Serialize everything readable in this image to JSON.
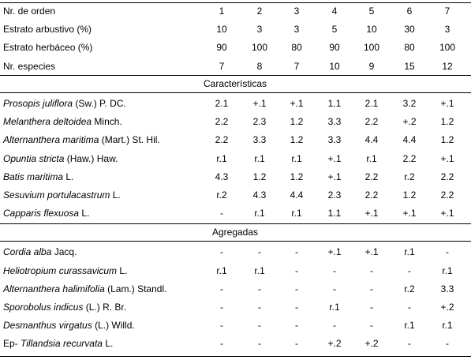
{
  "header_rows": [
    {
      "label": "Nr. de orden",
      "values": [
        "1",
        "2",
        "3",
        "4",
        "5",
        "6",
        "7"
      ]
    },
    {
      "label": "Estrato arbustivo (%)",
      "values": [
        "10",
        "3",
        "3",
        "5",
        "10",
        "30",
        "3"
      ]
    },
    {
      "label": "Estrato herbáceo (%)",
      "values": [
        "90",
        "100",
        "80",
        "90",
        "100",
        "80",
        "100"
      ]
    },
    {
      "label": "Nr. especies",
      "values": [
        "7",
        "8",
        "7",
        "10",
        "9",
        "15",
        "12"
      ]
    }
  ],
  "sections": [
    {
      "title": "Características",
      "rows": [
        {
          "species": "Prosopis juliflora",
          "author": "(Sw.) P. DC.",
          "values": [
            "2.1",
            "+.1",
            "+.1",
            "1.1",
            "2.1",
            "3.2",
            "+.1"
          ]
        },
        {
          "species": "Melanthera deltoidea",
          "author": "Minch.",
          "values": [
            "2.2",
            "2.3",
            "1.2",
            "3.3",
            "2.2",
            "+.2",
            "1.2"
          ]
        },
        {
          "species": "Alternanthera maritima",
          "author": "(Mart.) St. Hil.",
          "values": [
            "2.2",
            "3.3",
            "1.2",
            "3.3",
            "4.4",
            "4.4",
            "1.2"
          ]
        },
        {
          "species": "Opuntia stricta",
          "author": "(Haw.) Haw.",
          "values": [
            "r.1",
            "r.1",
            "r.1",
            "+.1",
            "r.1",
            "2.2",
            "+.1"
          ]
        },
        {
          "species": "Batis maritima",
          "author": "L.",
          "values": [
            "4.3",
            "1.2",
            "1.2",
            "+.1",
            "2.2",
            "r.2",
            "2.2"
          ]
        },
        {
          "species": "Sesuvium portulacastrum",
          "author": "L.",
          "values": [
            "r.2",
            "4.3",
            "4.4",
            "2.3",
            "2.2",
            "1.2",
            "2.2"
          ]
        },
        {
          "species": "Capparis flexuosa",
          "author": "L.",
          "values": [
            "-",
            "r.1",
            "r.1",
            "1.1",
            "+.1",
            "+.1",
            "+.1"
          ]
        }
      ]
    },
    {
      "title": "Agregadas",
      "rows": [
        {
          "species": "Cordia alba",
          "author": "Jacq.",
          "values": [
            "-",
            "-",
            "-",
            "+.1",
            "+.1",
            "r.1",
            "-"
          ]
        },
        {
          "species": "Heliotropium curassavicum",
          "author": "L.",
          "values": [
            "r.1",
            "r.1",
            "-",
            "-",
            "-",
            "-",
            "r.1"
          ]
        },
        {
          "species": "Alternanthera halimifolia",
          "author": "(Lam.) Standl.",
          "values": [
            "-",
            "-",
            "-",
            "-",
            "-",
            "r.2",
            "3.3"
          ]
        },
        {
          "species": "Sporobolus indicus",
          "author": "(L.) R. Br.",
          "values": [
            "-",
            "-",
            "-",
            "r.1",
            "-",
            "-",
            "+.2"
          ]
        },
        {
          "species": "Desmanthus virgatus",
          "author": "(L.) Willd.",
          "values": [
            "-",
            "-",
            "-",
            "-",
            "-",
            "r.1",
            "r.1"
          ]
        },
        {
          "prefix": "Ep-",
          "species": "Tillandsia recurvata",
          "author": "L.",
          "values": [
            "-",
            "-",
            "-",
            "+.2",
            "+.2",
            "-",
            "-"
          ]
        }
      ]
    }
  ]
}
